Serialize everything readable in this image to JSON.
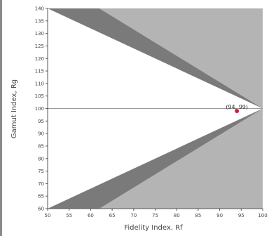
{
  "chart_data": {
    "type": "scatter",
    "title": "",
    "xlabel": "Fidelity Index, Rf",
    "ylabel": "Gamut Index, Rg",
    "xlim": [
      50,
      100
    ],
    "ylim": [
      60,
      140
    ],
    "x_ticks": [
      50,
      55,
      60,
      65,
      70,
      75,
      80,
      85,
      90,
      95,
      100
    ],
    "y_ticks": [
      60,
      65,
      70,
      75,
      80,
      85,
      90,
      95,
      100,
      105,
      110,
      115,
      120,
      125,
      130,
      135,
      140
    ],
    "reference_line_y": 100,
    "boundary_apex": [
      100,
      100
    ],
    "region_corners": {
      "upper_inner": [
        50,
        140
      ],
      "upper_outer": [
        62,
        140
      ],
      "lower_inner": [
        50,
        60
      ],
      "lower_outer": [
        62,
        60
      ]
    },
    "points": [
      {
        "x": 94,
        "y": 99,
        "label": "(94, 99)"
      }
    ],
    "grid": false,
    "colors": {
      "background": "#ffffff",
      "out_of_range": "#b4b4b4",
      "boundary_band": "#7a7a7a",
      "reference_line": "#9a9a9a",
      "point": "#cc1f3c",
      "axis": "#555555"
    }
  }
}
